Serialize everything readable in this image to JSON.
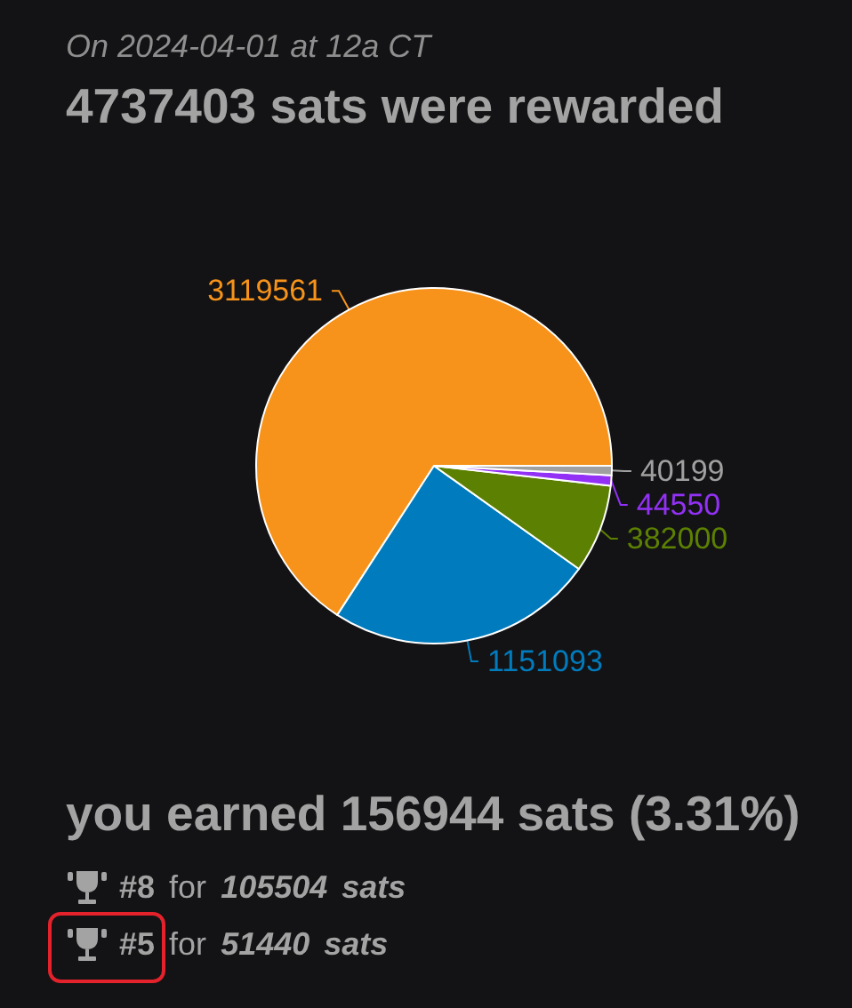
{
  "chart_data": {
    "type": "pie",
    "subtitle": "On 2024-04-01 at 12a CT",
    "title": "4737403 sats were rewarded",
    "categories": [
      null,
      null,
      null,
      null,
      null
    ],
    "values": [
      3119561,
      1151093,
      382000,
      44550,
      40199
    ],
    "colors": [
      "#f7931a",
      "#007cbe",
      "#5c8001",
      "#9231f5",
      "#a0a0a0"
    ],
    "data_labels": true,
    "annotations": [
      "you earned 156944 sats (3.31%)",
      "#8 for 105504 sats",
      "#5 for 51440 sats"
    ]
  }
}
